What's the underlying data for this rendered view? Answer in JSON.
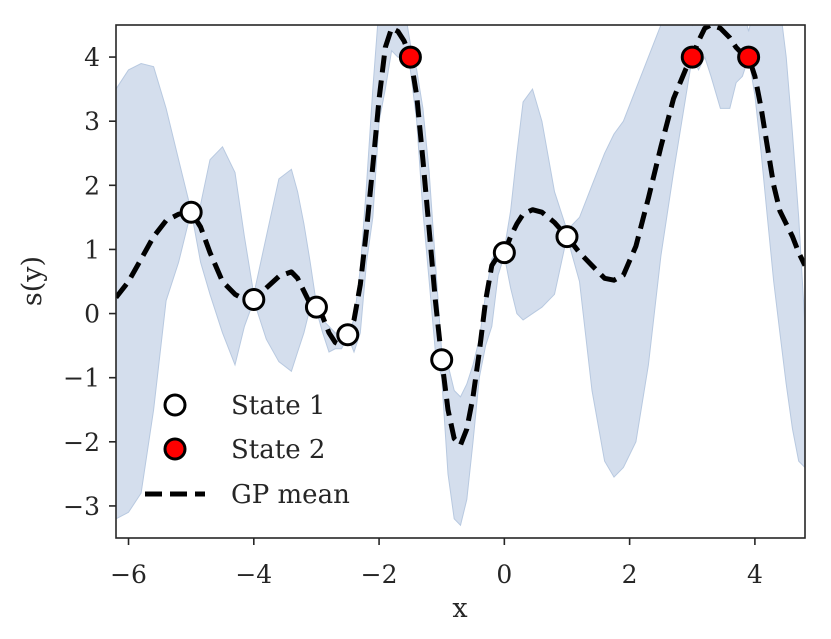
{
  "chart_data": {
    "type": "line",
    "xlabel": "x",
    "ylabel": "s(y)",
    "xlim": [
      -6.2,
      4.8
    ],
    "ylim": [
      -3.5,
      4.5
    ],
    "x_ticks": [
      -6,
      -4,
      -2,
      0,
      2,
      4
    ],
    "y_ticks": [
      -3,
      -2,
      -1,
      0,
      1,
      2,
      3,
      4
    ],
    "x_tick_labels": [
      "−6",
      "−4",
      "−2",
      "0",
      "2",
      "4"
    ],
    "y_tick_labels": [
      "−3",
      "−2",
      "−1",
      "0",
      "1",
      "2",
      "3",
      "4"
    ],
    "grid": false,
    "legend_position": "lower-left",
    "colors": {
      "band": "#c9d6e8",
      "mean": "#000000",
      "state1_fill": "#ffffff",
      "state2_fill": "#ff0000",
      "marker_edge": "#000000",
      "axis": "#262626"
    },
    "series": [
      {
        "name": "GP mean",
        "kind": "line",
        "x": [
          -6.2,
          -6.0,
          -5.8,
          -5.6,
          -5.4,
          -5.2,
          -5.0,
          -4.85,
          -4.7,
          -4.5,
          -4.3,
          -4.15,
          -4.0,
          -3.8,
          -3.6,
          -3.4,
          -3.3,
          -3.2,
          -3.1,
          -3.0,
          -2.9,
          -2.8,
          -2.7,
          -2.6,
          -2.5,
          -2.4,
          -2.3,
          -2.2,
          -2.1,
          -2.0,
          -1.9,
          -1.8,
          -1.7,
          -1.6,
          -1.5,
          -1.4,
          -1.3,
          -1.2,
          -1.1,
          -1.0,
          -0.9,
          -0.8,
          -0.7,
          -0.6,
          -0.5,
          -0.4,
          -0.3,
          -0.2,
          -0.1,
          0.0,
          0.1,
          0.2,
          0.3,
          0.45,
          0.6,
          0.8,
          1.0,
          1.2,
          1.4,
          1.6,
          1.75,
          1.9,
          2.1,
          2.3,
          2.5,
          2.7,
          2.9,
          3.0,
          3.1,
          3.2,
          3.3,
          3.45,
          3.6,
          3.7,
          3.8,
          3.9,
          4.0,
          4.1,
          4.2,
          4.3,
          4.4,
          4.5,
          4.6,
          4.7,
          4.8
        ],
        "y": [
          0.25,
          0.5,
          0.85,
          1.2,
          1.45,
          1.55,
          1.58,
          1.35,
          0.95,
          0.5,
          0.3,
          0.22,
          0.22,
          0.4,
          0.58,
          0.65,
          0.55,
          0.35,
          0.15,
          0.1,
          -0.05,
          -0.3,
          -0.45,
          -0.5,
          -0.33,
          -0.1,
          0.45,
          1.3,
          2.3,
          3.35,
          4.15,
          4.45,
          4.4,
          4.25,
          4.0,
          3.4,
          2.4,
          1.3,
          0.2,
          -0.72,
          -1.5,
          -1.95,
          -2.05,
          -1.8,
          -1.3,
          -0.6,
          0.2,
          0.75,
          0.9,
          0.95,
          1.2,
          1.4,
          1.55,
          1.62,
          1.58,
          1.42,
          1.2,
          0.95,
          0.75,
          0.55,
          0.52,
          0.6,
          1.05,
          1.8,
          2.6,
          3.35,
          3.82,
          4.0,
          4.25,
          4.45,
          4.5,
          4.45,
          4.3,
          4.15,
          4.05,
          4.0,
          3.7,
          3.2,
          2.6,
          2.0,
          1.6,
          1.4,
          1.2,
          0.95,
          0.75
        ]
      },
      {
        "name": "uncertainty band",
        "kind": "band",
        "x": [
          -6.2,
          -6.0,
          -5.8,
          -5.6,
          -5.4,
          -5.2,
          -5.0,
          -4.85,
          -4.7,
          -4.5,
          -4.3,
          -4.15,
          -4.0,
          -3.8,
          -3.6,
          -3.4,
          -3.3,
          -3.2,
          -3.1,
          -3.0,
          -2.9,
          -2.8,
          -2.7,
          -2.6,
          -2.5,
          -2.4,
          -2.3,
          -2.2,
          -2.1,
          -2.0,
          -1.9,
          -1.8,
          -1.7,
          -1.6,
          -1.5,
          -1.4,
          -1.3,
          -1.2,
          -1.1,
          -1.0,
          -0.9,
          -0.8,
          -0.7,
          -0.6,
          -0.5,
          -0.4,
          -0.3,
          -0.2,
          -0.1,
          0.0,
          0.1,
          0.2,
          0.3,
          0.45,
          0.6,
          0.8,
          1.0,
          1.2,
          1.4,
          1.6,
          1.75,
          1.9,
          2.1,
          2.3,
          2.5,
          2.7,
          2.9,
          3.0,
          3.1,
          3.2,
          3.3,
          3.45,
          3.6,
          3.7,
          3.8,
          3.9,
          4.0,
          4.1,
          4.2,
          4.3,
          4.4,
          4.5,
          4.6,
          4.7,
          4.8
        ],
        "upper": [
          3.5,
          3.8,
          3.9,
          3.85,
          3.2,
          2.4,
          1.6,
          1.7,
          2.4,
          2.6,
          2.2,
          1.2,
          0.3,
          1.2,
          2.1,
          2.25,
          1.9,
          1.4,
          0.8,
          0.15,
          -0.1,
          -0.2,
          -0.3,
          -0.35,
          -0.3,
          -0.1,
          0.7,
          2.0,
          3.5,
          4.8,
          4.8,
          4.8,
          4.8,
          4.8,
          4.2,
          3.8,
          3.2,
          2.2,
          0.8,
          -0.6,
          -0.8,
          -1.2,
          -1.3,
          -1.1,
          -0.8,
          -0.4,
          0.3,
          0.85,
          1.0,
          1.0,
          1.6,
          2.5,
          3.3,
          3.5,
          3.0,
          1.9,
          1.3,
          1.5,
          2.0,
          2.5,
          2.8,
          3.0,
          3.5,
          4.0,
          4.5,
          4.8,
          4.8,
          4.5,
          4.8,
          4.8,
          4.8,
          4.8,
          4.8,
          4.8,
          4.8,
          4.4,
          4.8,
          4.8,
          4.8,
          4.8,
          4.8,
          4.0,
          2.8,
          1.5,
          -0.2
        ],
        "lower": [
          -3.2,
          -3.1,
          -2.8,
          -1.5,
          0.2,
          0.8,
          1.6,
          0.8,
          0.3,
          -0.3,
          -0.8,
          -0.2,
          0.2,
          -0.4,
          -0.75,
          -0.9,
          -0.6,
          -0.3,
          0.1,
          0.05,
          -0.3,
          -0.6,
          -0.55,
          -0.55,
          -0.35,
          -0.6,
          -0.3,
          0.8,
          1.5,
          3.0,
          3.5,
          4.1,
          4.0,
          4.0,
          3.8,
          3.0,
          1.6,
          0.5,
          -0.6,
          -1.0,
          -2.5,
          -3.2,
          -3.3,
          -2.9,
          -2.0,
          -1.0,
          -0.5,
          -0.2,
          0.6,
          0.9,
          0.4,
          0.0,
          -0.1,
          0.0,
          0.1,
          0.3,
          1.2,
          0.5,
          -1.2,
          -2.3,
          -2.55,
          -2.4,
          -2.0,
          -0.8,
          0.9,
          2.2,
          3.4,
          4.0,
          3.8,
          4.0,
          3.7,
          3.2,
          3.2,
          3.6,
          3.7,
          4.0,
          3.4,
          2.5,
          1.5,
          0.5,
          -0.3,
          -1.1,
          -1.8,
          -2.3,
          -2.4
        ]
      },
      {
        "name": "State 1",
        "kind": "markers",
        "x": [
          -5.0,
          -4.0,
          -3.0,
          -2.5,
          -1.0,
          0.0,
          1.0
        ],
        "y": [
          1.58,
          0.22,
          0.1,
          -0.33,
          -0.72,
          0.95,
          1.2
        ]
      },
      {
        "name": "State 2",
        "kind": "markers",
        "x": [
          -1.5,
          3.0,
          3.9
        ],
        "y": [
          4.0,
          4.0,
          4.0
        ]
      }
    ],
    "legend": [
      {
        "label": "State 1",
        "symbol": "open-circle"
      },
      {
        "label": "State 2",
        "symbol": "red-circle"
      },
      {
        "label": "GP mean",
        "symbol": "dashed-line"
      }
    ]
  }
}
